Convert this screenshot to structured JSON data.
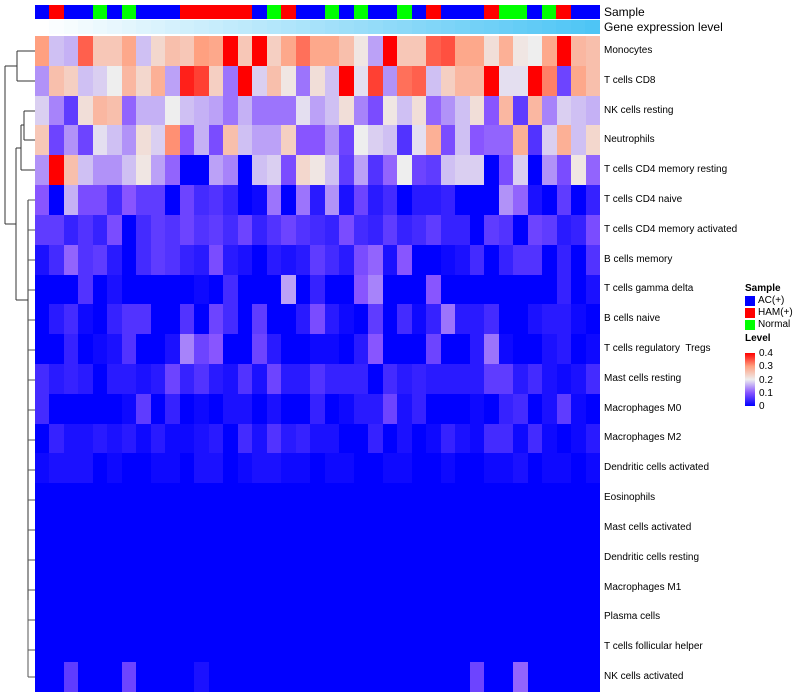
{
  "annotations": {
    "sample_label": "Sample",
    "expression_label": "Gene expression level"
  },
  "legend": {
    "sample_title": "Sample",
    "groups": [
      {
        "name": "AC(+)",
        "color": "#0000ff"
      },
      {
        "name": "HAM(+)",
        "color": "#ff0000"
      },
      {
        "name": "Normal",
        "color": "#00ff00"
      }
    ],
    "level_title": "Level",
    "level_ticks": [
      "0.4",
      "0.3",
      "0.2",
      "0.1",
      "0"
    ]
  },
  "chart_data": {
    "type": "heatmap",
    "value_range": [
      0,
      0.4
    ],
    "color_scale": [
      "#0000ff",
      "#8855ff",
      "#eeeeee",
      "#ffa080",
      "#ff0000"
    ],
    "expression_gradient": [
      "#ffffff",
      "#4ec5f5"
    ],
    "samples": [
      "AC(+)",
      "HAM(+)",
      "AC(+)",
      "AC(+)",
      "Normal",
      "AC(+)",
      "Normal",
      "AC(+)",
      "AC(+)",
      "AC(+)",
      "HAM(+)",
      "HAM(+)",
      "HAM(+)",
      "HAM(+)",
      "HAM(+)",
      "AC(+)",
      "Normal",
      "HAM(+)",
      "AC(+)",
      "AC(+)",
      "Normal",
      "AC(+)",
      "Normal",
      "AC(+)",
      "AC(+)",
      "Normal",
      "AC(+)",
      "HAM(+)",
      "AC(+)",
      "AC(+)",
      "AC(+)",
      "HAM(+)",
      "Normal",
      "Normal",
      "AC(+)",
      "Normal",
      "HAM(+)",
      "AC(+)",
      "AC(+)"
    ],
    "rows": [
      "Monocytes",
      "T cells CD8",
      "NK cells resting",
      "Neutrophils",
      "T cells CD4 memory resting",
      "T cells CD4 naive",
      "T cells CD4 memory activated",
      "B cells memory",
      "T cells gamma delta",
      "B cells naive",
      "T cells regulatory  Tregs",
      "Mast cells resting",
      "Macrophages M0",
      "Macrophages M2",
      "Dendritic cells activated",
      "Eosinophils",
      "Mast cells activated",
      "Dendritic cells resting",
      "Macrophages M1",
      "Plasma cells",
      "T cells follicular helper",
      "NK cells activated"
    ],
    "values": [
      [
        0.3,
        0.17,
        0.16,
        0.34,
        0.25,
        0.25,
        0.29,
        0.17,
        0.23,
        0.26,
        0.25,
        0.3,
        0.29,
        0.4,
        0.25,
        0.4,
        0.24,
        0.29,
        0.33,
        0.29,
        0.29,
        0.26,
        0.21,
        0.15,
        0.4,
        0.25,
        0.25,
        0.34,
        0.35,
        0.29,
        0.29,
        0.22,
        0.28,
        0.21,
        0.2,
        0.29,
        0.4,
        0.27,
        0.26
      ],
      [
        0.14,
        0.26,
        0.24,
        0.17,
        0.18,
        0.2,
        0.27,
        0.23,
        0.28,
        0.15,
        0.38,
        0.36,
        0.24,
        0.12,
        0.4,
        0.18,
        0.26,
        0.21,
        0.12,
        0.22,
        0.17,
        0.4,
        0.19,
        0.36,
        0.14,
        0.33,
        0.34,
        0.17,
        0.24,
        0.27,
        0.27,
        0.4,
        0.19,
        0.19,
        0.4,
        0.32,
        0.08,
        0.29,
        0.26
      ],
      [
        0.18,
        0.13,
        0.07,
        0.22,
        0.27,
        0.26,
        0.11,
        0.16,
        0.16,
        0.2,
        0.17,
        0.16,
        0.15,
        0.12,
        0.16,
        0.12,
        0.12,
        0.12,
        0.19,
        0.15,
        0.17,
        0.22,
        0.13,
        0.09,
        0.21,
        0.17,
        0.22,
        0.11,
        0.14,
        0.17,
        0.22,
        0.1,
        0.27,
        0.07,
        0.27,
        0.13,
        0.18,
        0.17,
        0.16
      ],
      [
        0.25,
        0.08,
        0.14,
        0.08,
        0.19,
        0.17,
        0.14,
        0.22,
        0.18,
        0.31,
        0.1,
        0.16,
        0.09,
        0.26,
        0.17,
        0.15,
        0.15,
        0.24,
        0.1,
        0.1,
        0.14,
        0.08,
        0.2,
        0.18,
        0.17,
        0.06,
        0.19,
        0.28,
        0.09,
        0.17,
        0.1,
        0.11,
        0.11,
        0.28,
        0.06,
        0.18,
        0.28,
        0.17,
        0.23
      ],
      [
        0.14,
        0.4,
        0.26,
        0.17,
        0.14,
        0.14,
        0.17,
        0.21,
        0.15,
        0.11,
        0,
        0,
        0.15,
        0.13,
        0,
        0.17,
        0.18,
        0.09,
        0.23,
        0.21,
        0.17,
        0.07,
        0.15,
        0.06,
        0.11,
        0.2,
        0.08,
        0.07,
        0.17,
        0.18,
        0.18,
        0,
        0.09,
        0.18,
        0,
        0.14,
        0.09,
        0.21,
        0.11
      ],
      [
        0.1,
        0,
        0.16,
        0.09,
        0.09,
        0.05,
        0.1,
        0.07,
        0.07,
        0,
        0.08,
        0.05,
        0.06,
        0.04,
        0,
        0.01,
        0.12,
        0,
        0.12,
        0.03,
        0.14,
        0.02,
        0.08,
        0.03,
        0.05,
        0,
        0.03,
        0.03,
        0.04,
        0,
        0,
        0,
        0.14,
        0.11,
        0.02,
        0,
        0.07,
        0,
        0.04
      ],
      [
        0.07,
        0.07,
        0.04,
        0.06,
        0.04,
        0.09,
        0,
        0.05,
        0.07,
        0.06,
        0.08,
        0.06,
        0.07,
        0.05,
        0.08,
        0.04,
        0.06,
        0.08,
        0.06,
        0.05,
        0.04,
        0.09,
        0.05,
        0.04,
        0.07,
        0.04,
        0.05,
        0.07,
        0.04,
        0.04,
        0,
        0.07,
        0.06,
        0,
        0.08,
        0.07,
        0.03,
        0.04,
        0.09
      ],
      [
        0.02,
        0.05,
        0.11,
        0.06,
        0.07,
        0.03,
        0,
        0.05,
        0.07,
        0.06,
        0.04,
        0.03,
        0.09,
        0.03,
        0.02,
        0,
        0.03,
        0.02,
        0.03,
        0.07,
        0.05,
        0.03,
        0.09,
        0.11,
        0.02,
        0.1,
        0,
        0,
        0.01,
        0.02,
        0.05,
        0,
        0.04,
        0.06,
        0.06,
        0,
        0.04,
        0,
        0.06
      ],
      [
        0,
        0,
        0,
        0.06,
        0,
        0.02,
        0,
        0,
        0,
        0,
        0,
        0.01,
        0,
        0.05,
        0,
        0,
        0,
        0.15,
        0,
        0.04,
        0,
        0,
        0.1,
        0.13,
        0,
        0,
        0,
        0.1,
        0,
        0,
        0,
        0,
        0,
        0,
        0,
        0,
        0.04,
        0,
        0.02
      ],
      [
        0,
        0.03,
        0.05,
        0.01,
        0,
        0.04,
        0.06,
        0.06,
        0,
        0,
        0.06,
        0,
        0.08,
        0.05,
        0,
        0.07,
        0,
        0,
        0.03,
        0.09,
        0.03,
        0.01,
        0,
        0.07,
        0,
        0.05,
        0.01,
        0.04,
        0.12,
        0.03,
        0.03,
        0.05,
        0,
        0,
        0.02,
        0.03,
        0.03,
        0.01,
        0
      ],
      [
        0,
        0,
        0.04,
        0,
        0.01,
        0.02,
        0.06,
        0,
        0,
        0.02,
        0.13,
        0.08,
        0.1,
        0,
        0,
        0.08,
        0.03,
        0,
        0,
        0.01,
        0.01,
        0,
        0.03,
        0.1,
        0,
        0,
        0,
        0.08,
        0,
        0,
        0.03,
        0.12,
        0.01,
        0,
        0,
        0.02,
        0.03,
        0,
        0.01
      ],
      [
        0.05,
        0.03,
        0.04,
        0.03,
        0,
        0.03,
        0.03,
        0.02,
        0.03,
        0.08,
        0.04,
        0.06,
        0.03,
        0.02,
        0.06,
        0.02,
        0.08,
        0.03,
        0.03,
        0.06,
        0.04,
        0.04,
        0.04,
        0,
        0.05,
        0.03,
        0.04,
        0.03,
        0.03,
        0.03,
        0.03,
        0.07,
        0.07,
        0.03,
        0.05,
        0.02,
        0.01,
        0.02,
        0.05
      ],
      [
        0.05,
        0,
        0,
        0,
        0,
        0,
        0.01,
        0.07,
        0,
        0.04,
        0,
        0.01,
        0,
        0.02,
        0.02,
        0,
        0.02,
        0,
        0,
        0.04,
        0,
        0.01,
        0.03,
        0.03,
        0.08,
        0.02,
        0.04,
        0,
        0,
        0,
        0.01,
        0,
        0.04,
        0.05,
        0,
        0.02,
        0.07,
        0.01,
        0
      ],
      [
        0,
        0.04,
        0.02,
        0.02,
        0.03,
        0.02,
        0.03,
        0.01,
        0.03,
        0.01,
        0.01,
        0.02,
        0.03,
        0,
        0.05,
        0.02,
        0.06,
        0.03,
        0.04,
        0.02,
        0.02,
        0,
        0,
        0.04,
        0,
        0.02,
        0,
        0.01,
        0.04,
        0.02,
        0.01,
        0.05,
        0.05,
        0.01,
        0.05,
        0.01,
        0,
        0.01,
        0.03
      ],
      [
        0.01,
        0.02,
        0.02,
        0.02,
        0,
        0.01,
        0,
        0,
        0.01,
        0.01,
        0,
        0.02,
        0.02,
        0,
        0.01,
        0.02,
        0.02,
        0.01,
        0.01,
        0,
        0.01,
        0.01,
        0,
        0,
        0.01,
        0.01,
        0,
        0,
        0.01,
        0,
        0,
        0.01,
        0.01,
        0.02,
        0,
        0.01,
        0.01,
        0,
        0.01
      ],
      [
        0,
        0,
        0,
        0,
        0,
        0,
        0,
        0,
        0,
        0,
        0,
        0,
        0,
        0,
        0,
        0,
        0,
        0,
        0,
        0,
        0,
        0,
        0,
        0,
        0,
        0,
        0,
        0,
        0,
        0,
        0,
        0,
        0,
        0,
        0,
        0,
        0,
        0,
        0
      ],
      [
        0,
        0,
        0,
        0,
        0,
        0,
        0,
        0,
        0,
        0,
        0,
        0,
        0,
        0,
        0,
        0,
        0,
        0,
        0,
        0,
        0,
        0,
        0,
        0,
        0,
        0,
        0,
        0,
        0,
        0,
        0,
        0,
        0,
        0,
        0,
        0,
        0,
        0,
        0
      ],
      [
        0,
        0,
        0,
        0,
        0,
        0,
        0,
        0,
        0,
        0,
        0,
        0,
        0,
        0,
        0,
        0,
        0,
        0,
        0,
        0,
        0,
        0,
        0,
        0,
        0,
        0,
        0,
        0,
        0,
        0,
        0,
        0,
        0,
        0,
        0,
        0,
        0,
        0,
        0
      ],
      [
        0,
        0,
        0,
        0,
        0,
        0,
        0,
        0,
        0,
        0,
        0,
        0,
        0,
        0,
        0,
        0,
        0,
        0,
        0,
        0,
        0,
        0,
        0,
        0,
        0,
        0,
        0,
        0,
        0,
        0,
        0,
        0,
        0,
        0,
        0,
        0,
        0,
        0,
        0
      ],
      [
        0,
        0,
        0,
        0,
        0,
        0,
        0,
        0,
        0,
        0,
        0,
        0,
        0,
        0,
        0,
        0,
        0,
        0,
        0,
        0,
        0,
        0,
        0,
        0,
        0,
        0,
        0,
        0,
        0,
        0,
        0,
        0,
        0,
        0,
        0,
        0,
        0,
        0,
        0
      ],
      [
        0,
        0,
        0,
        0,
        0,
        0,
        0,
        0,
        0,
        0,
        0,
        0,
        0,
        0,
        0,
        0,
        0,
        0,
        0,
        0,
        0,
        0,
        0,
        0,
        0,
        0,
        0,
        0,
        0,
        0,
        0,
        0,
        0,
        0,
        0,
        0,
        0,
        0,
        0
      ],
      [
        0,
        0,
        0.07,
        0,
        0,
        0,
        0.08,
        0,
        0,
        0,
        0,
        0.02,
        0,
        0,
        0,
        0,
        0,
        0,
        0,
        0,
        0,
        0,
        0,
        0,
        0,
        0,
        0,
        0,
        0,
        0,
        0.08,
        0,
        0,
        0.11,
        0,
        0,
        0,
        0,
        0
      ]
    ]
  }
}
